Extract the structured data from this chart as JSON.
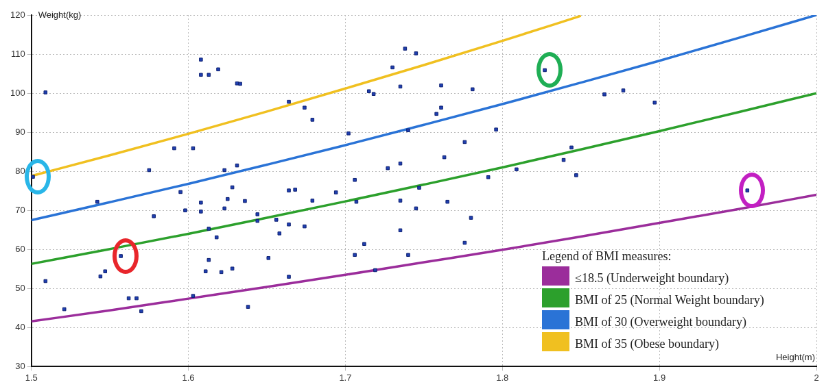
{
  "chart_data": {
    "type": "scatter",
    "xlabel": "Height(m)",
    "ylabel": "Weight(kg)",
    "legend_title": "Legend of BMI measures:",
    "xlim": [
      1.5,
      2
    ],
    "xticks": [
      1.5,
      1.6,
      1.7,
      1.8,
      1.9,
      2
    ],
    "ylim": [
      30,
      120
    ],
    "yticks": [
      30,
      40,
      50,
      60,
      70,
      80,
      90,
      100,
      110,
      120
    ],
    "grid": true,
    "legend": "bottom right",
    "marker": "square",
    "series": [
      {
        "color": "#1f3fb0",
        "x": [
          1.501,
          1.557,
          1.827,
          1.956,
          1.509,
          1.591,
          1.603,
          1.575,
          1.608,
          1.608,
          1.613,
          1.619,
          1.631,
          1.633,
          1.623,
          1.631,
          1.628,
          1.595,
          1.738,
          1.745,
          1.73,
          1.735,
          1.761,
          1.781,
          1.715,
          1.718,
          1.664,
          1.674,
          1.679,
          1.761,
          1.758,
          1.702,
          1.74,
          1.796,
          1.776,
          1.763,
          1.735,
          1.727,
          1.809,
          1.791,
          1.706,
          1.664,
          1.668,
          1.694,
          1.747,
          1.865,
          1.877,
          1.897,
          1.844,
          1.839,
          1.847,
          1.542,
          1.578,
          1.598,
          1.608,
          1.608,
          1.623,
          1.625,
          1.636,
          1.644,
          1.644,
          1.656,
          1.658,
          1.613,
          1.618,
          1.613,
          1.611,
          1.621,
          1.628,
          1.651,
          1.638,
          1.603,
          1.547,
          1.544,
          1.509,
          1.521,
          1.562,
          1.567,
          1.57,
          1.679,
          1.707,
          1.735,
          1.765,
          1.745,
          1.78,
          1.664,
          1.674,
          1.735,
          1.712,
          1.776,
          1.706,
          1.74,
          1.719,
          1.664
        ],
        "values": [
          78.6,
          58.3,
          105.9,
          75.1,
          100.2,
          85.9,
          85.9,
          80.3,
          108.6,
          104.7,
          104.7,
          106.1,
          102.5,
          102.4,
          80.3,
          81.5,
          75.9,
          74.7,
          111.4,
          110.2,
          106.6,
          101.7,
          102.0,
          101.0,
          100.5,
          99.8,
          97.8,
          96.3,
          93.2,
          96.3,
          94.7,
          89.7,
          90.5,
          90.7,
          87.5,
          83.6,
          82.0,
          80.8,
          80.5,
          78.5,
          77.8,
          75.1,
          75.3,
          74.6,
          75.8,
          99.7,
          100.7,
          97.6,
          86.1,
          82.9,
          79.0,
          72.2,
          68.5,
          70.0,
          72.0,
          69.7,
          70.5,
          72.9,
          72.4,
          69.0,
          67.3,
          67.6,
          64.1,
          65.3,
          63.1,
          57.3,
          54.4,
          54.2,
          55.1,
          57.8,
          45.3,
          48.1,
          54.4,
          53.1,
          51.9,
          44.7,
          47.5,
          47.5,
          44.2,
          72.5,
          72.2,
          72.5,
          72.2,
          70.5,
          68.1,
          66.4,
          65.9,
          64.9,
          61.4,
          61.7,
          58.6,
          58.6,
          54.7,
          53.0
        ]
      },
      {
        "type": "line",
        "name": "≤18.5 (Underweight boundary)",
        "color": "#9b2d9b",
        "marker": "none",
        "x": [
          1.5,
          1.55,
          1.6,
          1.65,
          1.7,
          1.75,
          1.8,
          1.85,
          1.9,
          1.95,
          2
        ],
        "values": [
          41.6,
          44.4,
          47.4,
          50.4,
          53.5,
          56.7,
          59.9,
          63.3,
          66.8,
          70.3,
          74.0
        ]
      },
      {
        "type": "line",
        "name": "BMI  of 25 (Normal Weight boundary)",
        "color": "#2ca02c",
        "marker": "none",
        "x": [
          1.5,
          1.55,
          1.6,
          1.65,
          1.7,
          1.75,
          1.8,
          1.85,
          1.9,
          1.95,
          2
        ],
        "values": [
          56.3,
          60.1,
          64.0,
          68.1,
          72.3,
          76.6,
          81.0,
          85.6,
          90.3,
          95.1,
          100.0
        ]
      },
      {
        "type": "line",
        "name": "BMI of 30 (Overweight boundary)",
        "color": "#2a73d6",
        "marker": "none",
        "x": [
          1.5,
          1.55,
          1.6,
          1.65,
          1.7,
          1.75,
          1.8,
          1.85,
          1.9,
          1.95,
          2
        ],
        "values": [
          67.5,
          72.1,
          76.8,
          81.7,
          86.7,
          91.9,
          97.2,
          102.7,
          108.3,
          114.1,
          120.0
        ]
      },
      {
        "type": "line",
        "name": "BMI of 35 (Obese boundary)",
        "color": "#f0c020",
        "marker": "none",
        "x": [
          1.5,
          1.55,
          1.6,
          1.65,
          1.7,
          1.75,
          1.8,
          1.85
        ],
        "values": [
          78.8,
          84.1,
          89.6,
          95.3,
          101.2,
          107.2,
          113.4,
          119.8
        ]
      }
    ]
  }
}
